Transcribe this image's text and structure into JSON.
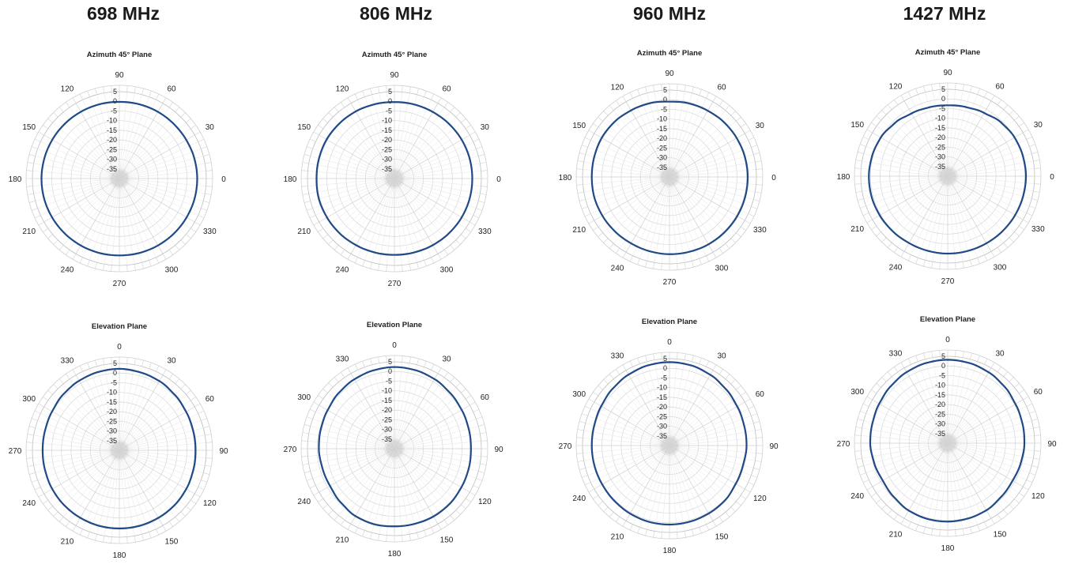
{
  "titles": [
    "698 MHz",
    "806 MHz",
    "960 MHz",
    "1427 MHz"
  ],
  "chart_data": [
    {
      "type": "polar-line",
      "title": "Azimuth 45° Plane",
      "angle_labels": [
        "0",
        "30",
        "60",
        "90",
        "120",
        "150",
        "180",
        "210",
        "240",
        "270",
        "300",
        "330"
      ],
      "radial_ticks": [
        "5",
        "0",
        "-5",
        "-10",
        "-15",
        "-20",
        "-25",
        "-30",
        "-35"
      ],
      "rlim": [
        -40,
        5
      ],
      "series": [
        {
          "angles_deg": [
            0,
            15,
            30,
            45,
            60,
            75,
            90,
            105,
            120,
            135,
            150,
            165,
            180,
            195,
            210,
            225,
            240,
            255,
            270,
            285,
            300,
            315,
            330,
            345
          ],
          "values_db": [
            0.3,
            0.2,
            0,
            -0.1,
            -0.1,
            -0.2,
            -0.3,
            -0.2,
            -0.1,
            0,
            0.1,
            0.2,
            0.3,
            0.3,
            0.2,
            0.1,
            0,
            -0.1,
            -0.2,
            -0.1,
            0,
            0.1,
            0.2,
            0.3
          ]
        }
      ]
    },
    {
      "type": "polar-line",
      "title": "Azimuth 45° Plane",
      "angle_labels": [
        "0",
        "30",
        "60",
        "90",
        "120",
        "150",
        "180",
        "210",
        "240",
        "270",
        "300",
        "330"
      ],
      "radial_ticks": [
        "5",
        "0",
        "-5",
        "-10",
        "-15",
        "-20",
        "-25",
        "-30",
        "-35"
      ],
      "rlim": [
        -40,
        5
      ],
      "series": [
        {
          "angles_deg": [
            0,
            15,
            30,
            45,
            60,
            75,
            90,
            105,
            120,
            135,
            150,
            165,
            180,
            195,
            210,
            225,
            240,
            255,
            270,
            285,
            300,
            315,
            330,
            345
          ],
          "values_db": [
            0.3,
            0.3,
            0.2,
            0,
            -0.2,
            -0.3,
            -0.4,
            -0.2,
            0.1,
            0.3,
            0.5,
            0.4,
            0.3,
            0.5,
            0.3,
            0.1,
            -0.2,
            -0.4,
            -0.5,
            -0.4,
            -0.2,
            0,
            0.2,
            0.3
          ]
        }
      ]
    },
    {
      "type": "polar-line",
      "title": "Azimuth 45° Plane",
      "angle_labels": [
        "0",
        "30",
        "60",
        "90",
        "120",
        "150",
        "180",
        "210",
        "240",
        "270",
        "300",
        "330"
      ],
      "radial_ticks": [
        "5",
        "0",
        "-5",
        "-10",
        "-15",
        "-20",
        "-25",
        "-30",
        "-35"
      ],
      "rlim": [
        -40,
        5
      ],
      "series": [
        {
          "angles_deg": [
            0,
            15,
            30,
            45,
            60,
            75,
            90,
            105,
            120,
            135,
            150,
            165,
            180,
            195,
            210,
            225,
            240,
            255,
            270,
            285,
            300,
            315,
            330,
            345
          ],
          "values_db": [
            0.5,
            0.4,
            0.2,
            0,
            -0.4,
            -0.6,
            -1,
            -0.5,
            -0.2,
            0.3,
            0.5,
            0.3,
            0.2,
            0.3,
            0.1,
            -0.1,
            -0.3,
            -0.2,
            0,
            0.1,
            0.3,
            0.4,
            0.5,
            0.5
          ]
        }
      ]
    },
    {
      "type": "polar-line",
      "title": "Azimuth 45° Plane",
      "angle_labels": [
        "0",
        "30",
        "60",
        "90",
        "120",
        "150",
        "180",
        "210",
        "240",
        "270",
        "300",
        "330"
      ],
      "radial_ticks": [
        "5",
        "0",
        "-5",
        "-10",
        "-15",
        "-20",
        "-25",
        "-30",
        "-35"
      ],
      "rlim": [
        -40,
        5
      ],
      "series": [
        {
          "angles_deg": [
            0,
            15,
            30,
            45,
            60,
            75,
            90,
            105,
            120,
            135,
            150,
            165,
            180,
            195,
            210,
            225,
            240,
            255,
            270,
            285,
            300,
            315,
            330,
            345
          ],
          "values_db": [
            0.5,
            0.3,
            0,
            -0.8,
            -2.2,
            -3,
            -3.3,
            -3.1,
            -2.5,
            -1.2,
            0,
            0.5,
            0.8,
            0.8,
            0.6,
            0.3,
            0,
            0,
            0.1,
            0.1,
            0.1,
            0.2,
            0.3,
            0.4
          ]
        }
      ]
    },
    {
      "type": "polar-line",
      "title": "Elevation Plane",
      "angle_labels": [
        "0",
        "30",
        "60",
        "90",
        "120",
        "150",
        "180",
        "210",
        "240",
        "270",
        "300",
        "330"
      ],
      "radial_ticks": [
        "5",
        "0",
        "-5",
        "-10",
        "-15",
        "-20",
        "-25",
        "-30",
        "-35"
      ],
      "rlim": [
        -40,
        5
      ],
      "series": [
        {
          "angles_deg": [
            0,
            15,
            30,
            45,
            60,
            75,
            90,
            105,
            120,
            135,
            150,
            165,
            180,
            195,
            210,
            225,
            240,
            255,
            270,
            285,
            300,
            315,
            330,
            345
          ],
          "values_db": [
            2.2,
            1.8,
            1.4,
            0.6,
            -0.1,
            -0.5,
            -0.6,
            -0.4,
            0,
            0.3,
            0.4,
            0.5,
            0.5,
            0.5,
            0.4,
            0.3,
            0.1,
            -0.2,
            -0.3,
            -0.2,
            0.2,
            1,
            1.6,
            2
          ]
        }
      ]
    },
    {
      "type": "polar-line",
      "title": "Elevation Plane",
      "angle_labels": [
        "0",
        "30",
        "60",
        "90",
        "120",
        "150",
        "180",
        "210",
        "240",
        "270",
        "300",
        "330"
      ],
      "radial_ticks": [
        "5",
        "0",
        "-5",
        "-10",
        "-15",
        "-20",
        "-25",
        "-30",
        "-35"
      ],
      "rlim": [
        -40,
        5
      ],
      "series": [
        {
          "angles_deg": [
            0,
            15,
            30,
            45,
            60,
            75,
            90,
            105,
            120,
            135,
            150,
            165,
            180,
            195,
            210,
            225,
            240,
            255,
            270,
            285,
            300,
            315,
            330,
            345
          ],
          "values_db": [
            2.3,
            2.1,
            1.6,
            0.8,
            0.2,
            -0.2,
            -0.4,
            -0.2,
            0,
            0.4,
            0.5,
            0.3,
            0.2,
            0.5,
            0.3,
            -0.7,
            -1.5,
            -1.4,
            -0.9,
            -0.6,
            -0.1,
            0.8,
            1.5,
            2
          ]
        }
      ]
    },
    {
      "type": "polar-line",
      "title": "Elevation Plane",
      "angle_labels": [
        "0",
        "30",
        "60",
        "90",
        "120",
        "150",
        "180",
        "210",
        "240",
        "270",
        "300",
        "330"
      ],
      "radial_ticks": [
        "5",
        "0",
        "-5",
        "-10",
        "-15",
        "-20",
        "-25",
        "-30",
        "-35"
      ],
      "rlim": [
        -40,
        5
      ],
      "series": [
        {
          "angles_deg": [
            0,
            15,
            30,
            45,
            60,
            75,
            90,
            105,
            120,
            135,
            150,
            165,
            180,
            195,
            210,
            225,
            240,
            255,
            270,
            285,
            300,
            315,
            330,
            345
          ],
          "values_db": [
            3.2,
            3,
            2.3,
            1.3,
            0.5,
            0,
            -0.1,
            -0.6,
            -0.4,
            0.4,
            0.6,
            0.8,
            0.9,
            0.9,
            0.7,
            0.4,
            0.2,
            0.2,
            0.2,
            0.3,
            0.8,
            1.6,
            2.4,
            3
          ]
        }
      ]
    },
    {
      "type": "polar-line",
      "title": "Elevation Plane",
      "angle_labels": [
        "0",
        "30",
        "60",
        "90",
        "120",
        "150",
        "180",
        "210",
        "240",
        "270",
        "300",
        "330"
      ],
      "radial_ticks": [
        "5",
        "0",
        "-5",
        "-10",
        "-15",
        "-20",
        "-25",
        "-30",
        "-35"
      ],
      "rlim": [
        -40,
        5
      ],
      "series": [
        {
          "angles_deg": [
            0,
            15,
            30,
            45,
            60,
            75,
            90,
            105,
            120,
            135,
            150,
            165,
            180,
            195,
            210,
            225,
            240,
            255,
            270,
            285,
            300,
            315,
            330,
            345
          ],
          "values_db": [
            3.2,
            3,
            2.4,
            1.5,
            0.5,
            0,
            -0.3,
            -0.8,
            -1.2,
            -0.8,
            0.1,
            0.4,
            0.6,
            0.6,
            0.3,
            -0.6,
            -1.2,
            -0.6,
            0.1,
            0.3,
            0.9,
            1.7,
            2.5,
            3
          ]
        }
      ]
    }
  ]
}
